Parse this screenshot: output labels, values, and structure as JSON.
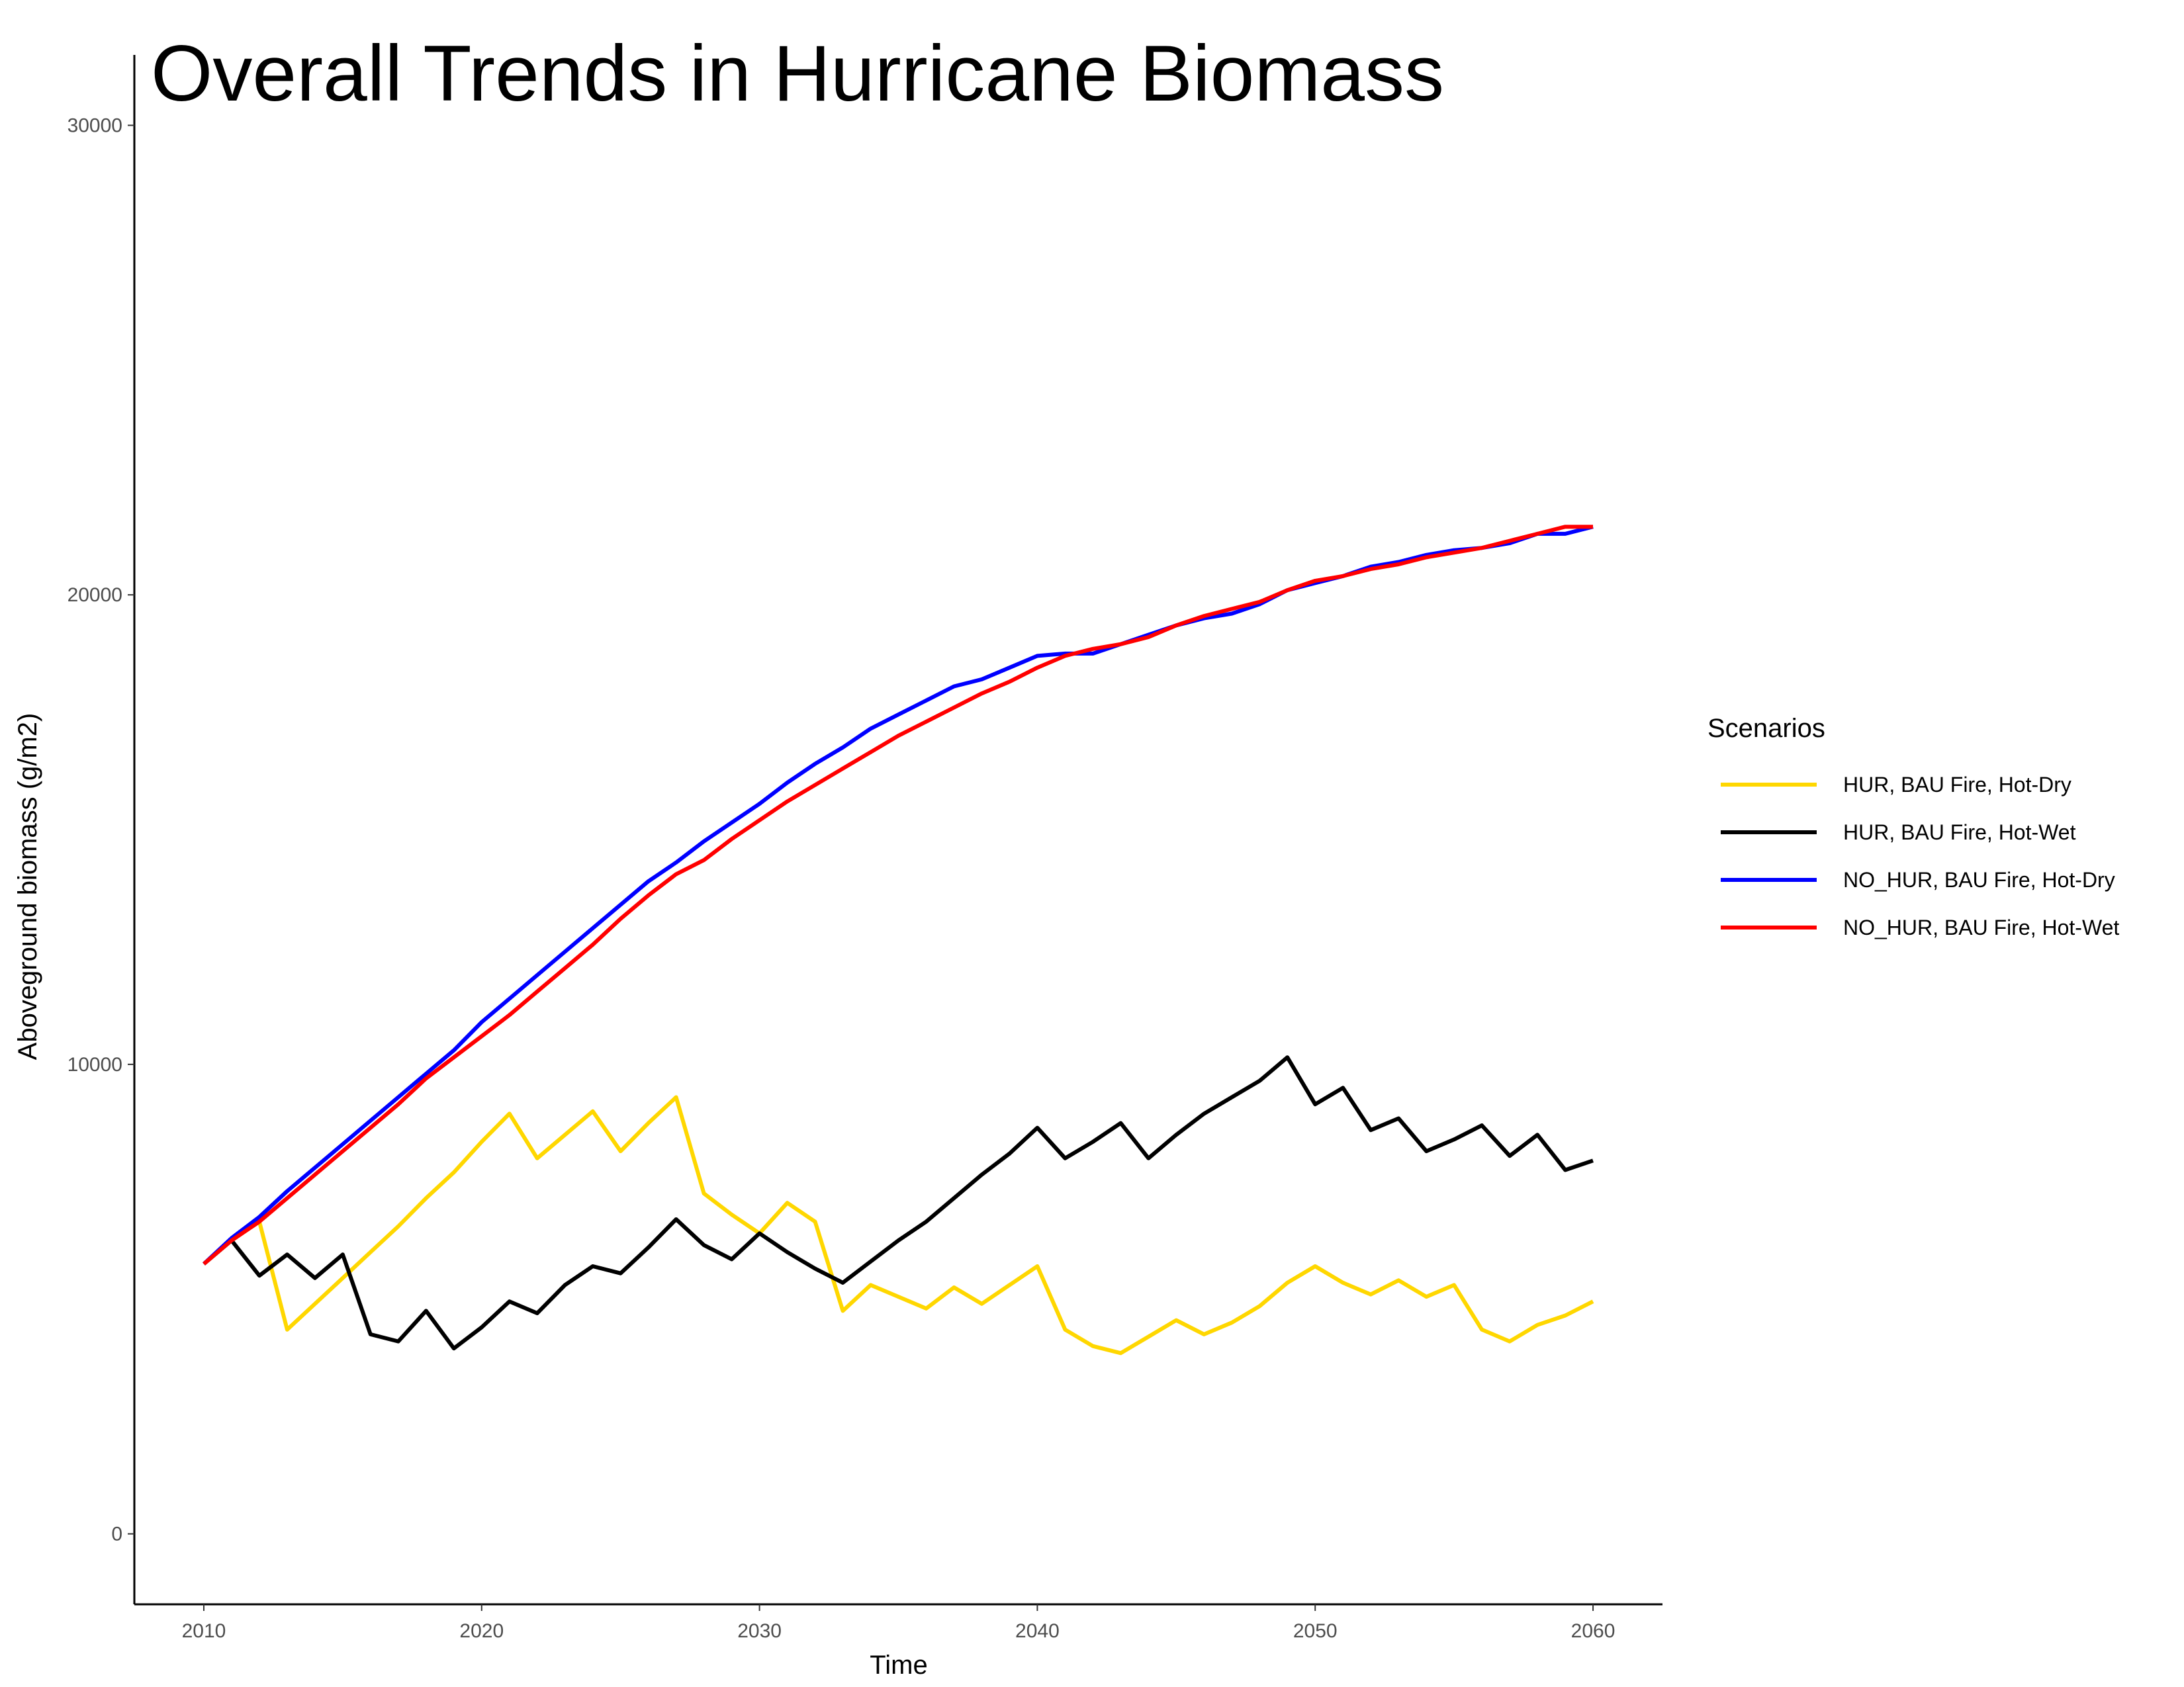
{
  "chart_data": {
    "type": "line",
    "title": "Overall Trends in Hurricane Biomass",
    "xlabel": "Time",
    "ylabel": "Aboveground biomass (g/m2)",
    "xlim": [
      2007.5,
      2062.5
    ],
    "ylim": [
      -1500,
      31500
    ],
    "xticks": [
      2010,
      2020,
      2030,
      2040,
      2050,
      2060
    ],
    "yticks": [
      0,
      10000,
      20000,
      30000
    ],
    "grid": false,
    "legend": {
      "title": "Scenarios",
      "position": "right"
    },
    "x": [
      2010,
      2011,
      2012,
      2013,
      2014,
      2015,
      2016,
      2017,
      2018,
      2019,
      2020,
      2021,
      2022,
      2023,
      2024,
      2025,
      2026,
      2027,
      2028,
      2029,
      2030,
      2031,
      2032,
      2033,
      2034,
      2035,
      2036,
      2037,
      2038,
      2039,
      2040,
      2041,
      2042,
      2043,
      2044,
      2045,
      2046,
      2047,
      2048,
      2049,
      2050,
      2051,
      2052,
      2053,
      2054,
      2055,
      2056,
      2057,
      2058,
      2059,
      2060
    ],
    "series": [
      {
        "name": "HUR, BAU Fire, Hot-Dry",
        "color": "#FFD700",
        "values": [
          5750,
          6250,
          6650,
          4350,
          4900,
          5450,
          6000,
          6550,
          7150,
          7700,
          8350,
          8950,
          8000,
          8500,
          9000,
          8150,
          8750,
          9300,
          7250,
          6800,
          6400,
          7050,
          6650,
          4750,
          5300,
          5050,
          4800,
          5250,
          4900,
          5300,
          5700,
          4350,
          4000,
          3850,
          4200,
          4550,
          4250,
          4500,
          4850,
          5350,
          5700,
          5350,
          5100,
          5400,
          5050,
          5300,
          4350,
          4100,
          4450,
          4650,
          4950
        ]
      },
      {
        "name": "HUR, BAU Fire, Hot-Wet",
        "color": "#000000",
        "values": [
          5750,
          6250,
          5500,
          5950,
          5450,
          5950,
          4250,
          4100,
          4750,
          3950,
          4400,
          4950,
          4700,
          5300,
          5700,
          5550,
          6100,
          6700,
          6150,
          5850,
          6400,
          6000,
          5650,
          5350,
          5800,
          6250,
          6650,
          7150,
          7650,
          8100,
          8650,
          8000,
          8350,
          8750,
          8000,
          8500,
          8950,
          9300,
          9650,
          10150,
          9150,
          9500,
          8600,
          8850,
          8150,
          8400,
          8700,
          8050,
          8500,
          7750,
          7950
        ]
      },
      {
        "name": "NO_HUR, BAU Fire, Hot-Dry",
        "color": "#0000FF",
        "values": [
          5750,
          6300,
          6750,
          7300,
          7800,
          8300,
          8800,
          9300,
          9800,
          10300,
          10900,
          11400,
          11900,
          12400,
          12900,
          13400,
          13900,
          14300,
          14750,
          15150,
          15550,
          16000,
          16400,
          16750,
          17150,
          17450,
          17750,
          18050,
          18200,
          18450,
          18700,
          18750,
          18750,
          18950,
          19150,
          19350,
          19500,
          19600,
          19800,
          20100,
          20250,
          20400,
          20600,
          20700,
          20850,
          20950,
          21000,
          21100,
          21300,
          21300,
          21450
        ]
      },
      {
        "name": "NO_HUR, BAU Fire, Hot-Wet",
        "color": "#FF0000",
        "values": [
          5750,
          6250,
          6650,
          7150,
          7650,
          8150,
          8650,
          9150,
          9700,
          10150,
          10600,
          11050,
          11550,
          12050,
          12550,
          13100,
          13600,
          14050,
          14350,
          14800,
          15200,
          15600,
          15950,
          16300,
          16650,
          17000,
          17300,
          17600,
          17900,
          18150,
          18450,
          18700,
          18850,
          18950,
          19100,
          19350,
          19550,
          19700,
          19850,
          20100,
          20300,
          20400,
          20550,
          20650,
          20800,
          20900,
          21000,
          21150,
          21300,
          21450,
          21450
        ]
      }
    ]
  }
}
